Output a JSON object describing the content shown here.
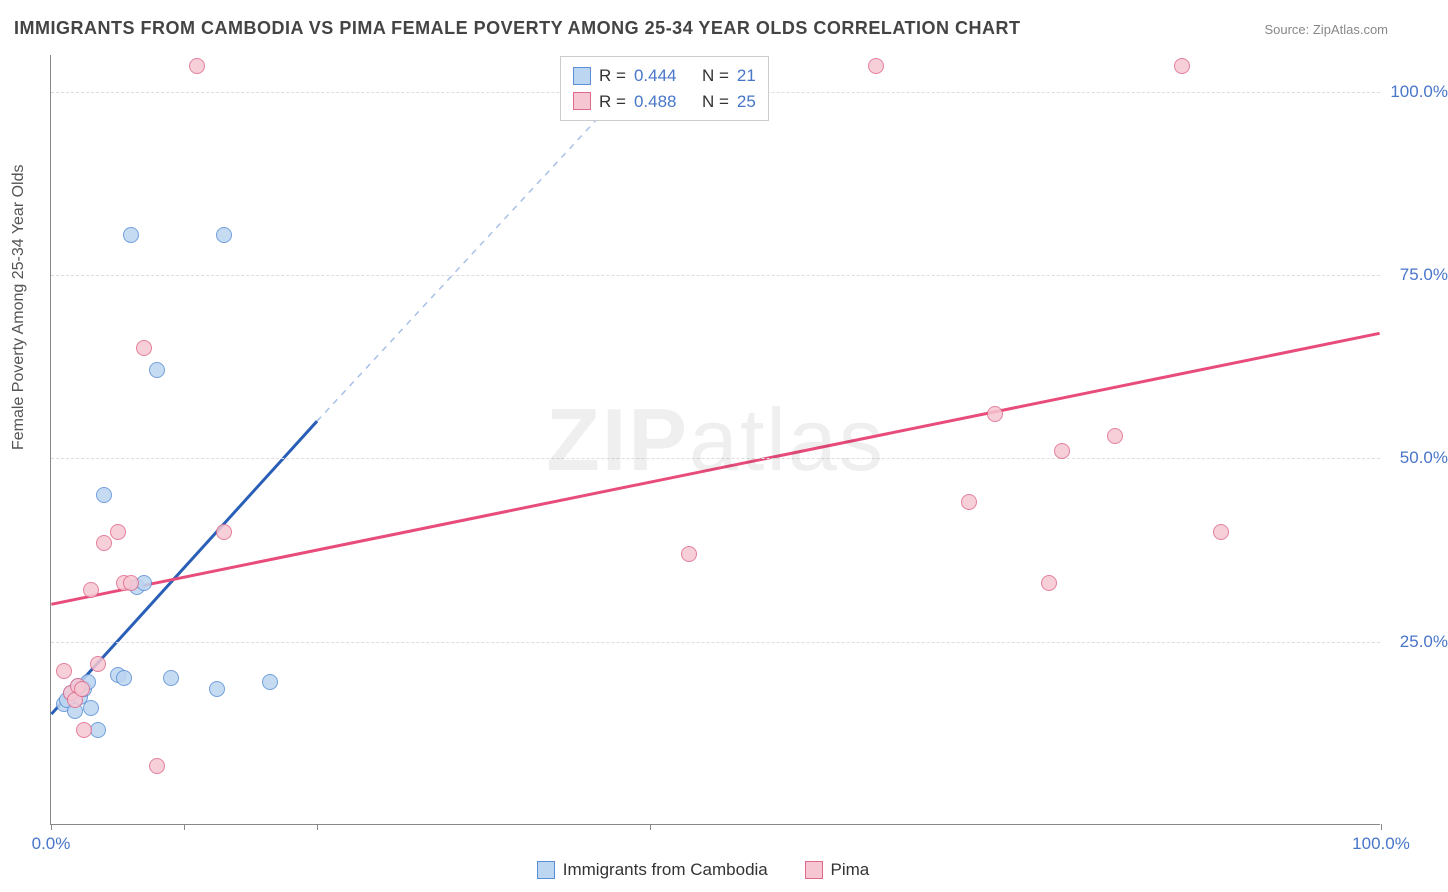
{
  "title": "IMMIGRANTS FROM CAMBODIA VS PIMA FEMALE POVERTY AMONG 25-34 YEAR OLDS CORRELATION CHART",
  "source_label": "Source: ZipAtlas.com",
  "ylabel": "Female Poverty Among 25-34 Year Olds",
  "watermark": {
    "bold": "ZIP",
    "light": "atlas"
  },
  "chart": {
    "type": "scatter",
    "background_color": "#ffffff",
    "grid_color": "#dddddd",
    "axis_color": "#888888",
    "tick_label_color": "#4876c9",
    "tick_fontsize": 17,
    "xlim": [
      0,
      100
    ],
    "ylim": [
      0,
      105
    ],
    "y_gridlines": [
      25,
      50,
      75,
      100
    ],
    "y_tick_labels": [
      "25.0%",
      "50.0%",
      "75.0%",
      "100.0%"
    ],
    "x_ticks": [
      0,
      10,
      20,
      45,
      100
    ],
    "x_tick_labels": {
      "0": "0.0%",
      "100": "100.0%"
    },
    "series": [
      {
        "name": "Immigrants from Cambodia",
        "marker_fill": "#bcd5f0",
        "marker_stroke": "#5a8fd6",
        "line_color": "#2a5fb8",
        "line_dash_color": "#a8c0e8",
        "R": "0.444",
        "N": "21",
        "points": [
          [
            1.0,
            16.5
          ],
          [
            1.2,
            17.0
          ],
          [
            1.5,
            18.0
          ],
          [
            1.8,
            15.5
          ],
          [
            2.0,
            19.0
          ],
          [
            2.2,
            17.5
          ],
          [
            2.5,
            18.5
          ],
          [
            2.8,
            19.5
          ],
          [
            3.0,
            16.0
          ],
          [
            3.5,
            13.0
          ],
          [
            4.0,
            45.0
          ],
          [
            5.0,
            20.5
          ],
          [
            5.5,
            20.0
          ],
          [
            6.0,
            80.5
          ],
          [
            6.5,
            32.5
          ],
          [
            7.0,
            33.0
          ],
          [
            8.0,
            62.0
          ],
          [
            9.0,
            20.0
          ],
          [
            12.5,
            18.5
          ],
          [
            13.0,
            80.5
          ],
          [
            16.5,
            19.5
          ]
        ],
        "trend_solid": {
          "x1": 0,
          "y1": 15,
          "x2": 20,
          "y2": 55
        },
        "trend_dash": {
          "x1": 20,
          "y1": 55,
          "x2": 43,
          "y2": 100
        }
      },
      {
        "name": "Pima",
        "marker_fill": "#f6c7d3",
        "marker_stroke": "#e06a8c",
        "line_color": "#e84c7a",
        "R": "0.488",
        "N": "25",
        "points": [
          [
            1.0,
            21.0
          ],
          [
            1.5,
            18.0
          ],
          [
            2.0,
            19.0
          ],
          [
            2.5,
            13.0
          ],
          [
            3.0,
            32.0
          ],
          [
            3.5,
            22.0
          ],
          [
            4.0,
            38.5
          ],
          [
            5.0,
            40.0
          ],
          [
            5.5,
            33.0
          ],
          [
            6.0,
            33.0
          ],
          [
            7.0,
            65.0
          ],
          [
            8.0,
            8.0
          ],
          [
            11.0,
            103.5
          ],
          [
            13.0,
            40.0
          ],
          [
            48.0,
            37.0
          ],
          [
            62.0,
            103.5
          ],
          [
            69.0,
            44.0
          ],
          [
            71.0,
            56.0
          ],
          [
            75.0,
            33.0
          ],
          [
            76.0,
            51.0
          ],
          [
            80.0,
            53.0
          ],
          [
            85.0,
            103.5
          ],
          [
            88.0,
            40.0
          ],
          [
            1.8,
            17.0
          ],
          [
            2.3,
            18.5
          ]
        ],
        "trend_solid": {
          "x1": 0,
          "y1": 30,
          "x2": 100,
          "y2": 67
        }
      }
    ],
    "marker_radius": 8
  },
  "legend_top": {
    "rows": [
      {
        "swatch_fill": "#bcd5f0",
        "swatch_stroke": "#5a8fd6",
        "r_label": "R =",
        "r_value": "0.444",
        "n_label": "N =",
        "n_value": "21"
      },
      {
        "swatch_fill": "#f6c7d3",
        "swatch_stroke": "#e06a8c",
        "r_label": "R =",
        "r_value": "0.488",
        "n_label": "N =",
        "n_value": "25"
      }
    ]
  },
  "legend_bottom": {
    "items": [
      {
        "swatch_fill": "#bcd5f0",
        "swatch_stroke": "#5a8fd6",
        "label": "Immigrants from Cambodia"
      },
      {
        "swatch_fill": "#f6c7d3",
        "swatch_stroke": "#e06a8c",
        "label": "Pima"
      }
    ]
  }
}
